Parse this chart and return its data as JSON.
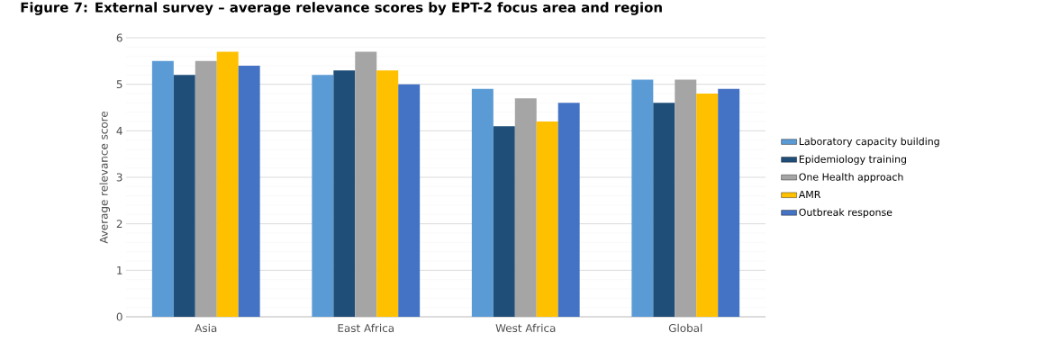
{
  "chart_data": {
    "type": "bar",
    "title": "Figure 7: External survey – average relevance scores by EPT-2 focus area and region",
    "ylabel": "Average relevance score",
    "categories": [
      "Asia",
      "East Africa",
      "West Africa",
      "Global"
    ],
    "series": [
      {
        "name": "Laboratory capacity building",
        "color": "#5b9bd5",
        "values": [
          5.5,
          5.2,
          4.9,
          5.1
        ]
      },
      {
        "name": "Epidemiology training",
        "color": "#1f4e79",
        "values": [
          5.2,
          5.3,
          4.1,
          4.6
        ]
      },
      {
        "name": "One Health approach",
        "color": "#a5a5a5",
        "values": [
          5.5,
          5.7,
          4.7,
          5.1
        ]
      },
      {
        "name": "AMR",
        "color": "#ffc000",
        "values": [
          5.7,
          5.3,
          4.2,
          4.8
        ]
      },
      {
        "name": "Outbreak response",
        "color": "#4472c4",
        "values": [
          5.4,
          5.0,
          4.6,
          4.9
        ]
      }
    ],
    "ylim": [
      0,
      6
    ],
    "yticks": [
      0,
      1,
      2,
      3,
      4,
      5,
      6
    ],
    "grid": "y",
    "legend": "right"
  }
}
